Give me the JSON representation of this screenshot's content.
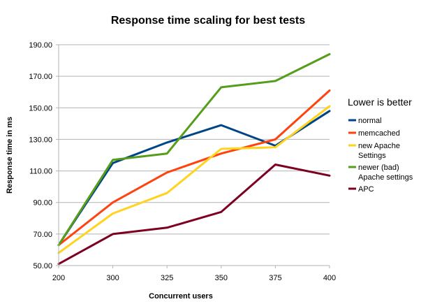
{
  "chart_data": {
    "type": "line",
    "title": "Response time scaling for best tests",
    "xlabel": "Concurrent users",
    "ylabel": "Response time in ms",
    "x": [
      200,
      300,
      325,
      350,
      375,
      400
    ],
    "x_tick_labels": [
      "200",
      "300",
      "325",
      "350",
      "375",
      "400"
    ],
    "ylim": [
      50,
      190
    ],
    "y_ticks": [
      50,
      70,
      90,
      110,
      130,
      150,
      170,
      190
    ],
    "y_tick_labels": [
      "50.00",
      "70.00",
      "90.00",
      "110.00",
      "130.00",
      "150.00",
      "170.00",
      "190.00"
    ],
    "grid": "horizontal",
    "legend_title": "Lower is better",
    "legend_position": "right",
    "series": [
      {
        "name": "normal",
        "label_lines": [
          "normal"
        ],
        "color": "#004586",
        "values": [
          63,
          115,
          128,
          139,
          126,
          148
        ]
      },
      {
        "name": "memcached",
        "label_lines": [
          "memcached"
        ],
        "color": "#ff420e",
        "values": [
          63,
          90,
          109,
          121,
          130,
          161
        ]
      },
      {
        "name": "new Apache Settings",
        "label_lines": [
          "new Apache",
          "Settings"
        ],
        "color": "#ffd320",
        "values": [
          58,
          83,
          96,
          124,
          125,
          151
        ]
      },
      {
        "name": "newer (bad) Apache settings",
        "label_lines": [
          "newer (bad)",
          "Apache settings"
        ],
        "color": "#579d1c",
        "values": [
          63,
          117,
          121,
          163,
          167,
          184
        ]
      },
      {
        "name": "APC",
        "label_lines": [
          "APC"
        ],
        "color": "#7e0021",
        "values": [
          51,
          70,
          74,
          84,
          114,
          107
        ]
      }
    ]
  }
}
